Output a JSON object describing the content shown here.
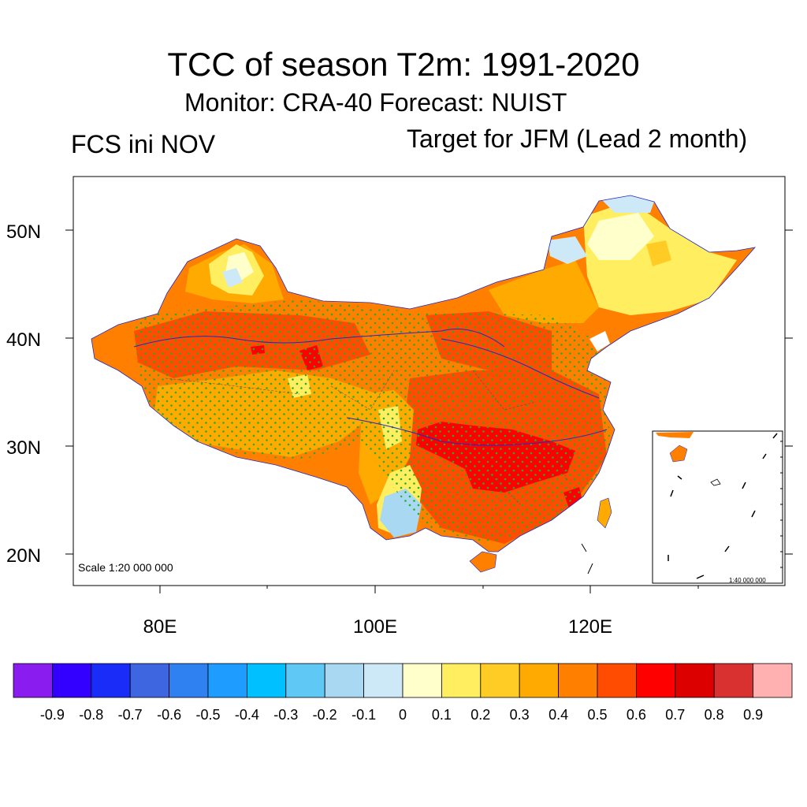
{
  "header": {
    "title": "TCC of season T2m: 1991-2020",
    "subtitle": "Monitor: CRA-40   Forecast: NUIST",
    "left_label": "FCS ini NOV",
    "right_label": "Target for JFM (Lead 2 month)"
  },
  "map": {
    "lat_labels": [
      "50N",
      "40N",
      "30N",
      "20N"
    ],
    "lon_labels": [
      "80E",
      "100E",
      "120E"
    ],
    "scale_label": "Scale 1:20 000 000",
    "inset_scale_label": "1:40 000 000"
  },
  "colorbar": {
    "labels": [
      "-0.9",
      "-0.8",
      "-0.7",
      "-0.6",
      "-0.5",
      "-0.4",
      "-0.3",
      "-0.2",
      "-0.1",
      "0",
      "0.1",
      "0.2",
      "0.3",
      "0.4",
      "0.5",
      "0.6",
      "0.7",
      "0.8",
      "0.9"
    ],
    "colors": [
      "#8a1cf0",
      "#3300ff",
      "#1a2cf8",
      "#3d66e0",
      "#2f80f0",
      "#1e9cff",
      "#00c0ff",
      "#60c8f4",
      "#a8d8f2",
      "#cde9f7",
      "#ffffcc",
      "#ffee60",
      "#ffcc26",
      "#ffaa00",
      "#ff8000",
      "#ff4c00",
      "#ff0000",
      "#dd0000",
      "#d93030",
      "#ffb0b0"
    ]
  }
}
